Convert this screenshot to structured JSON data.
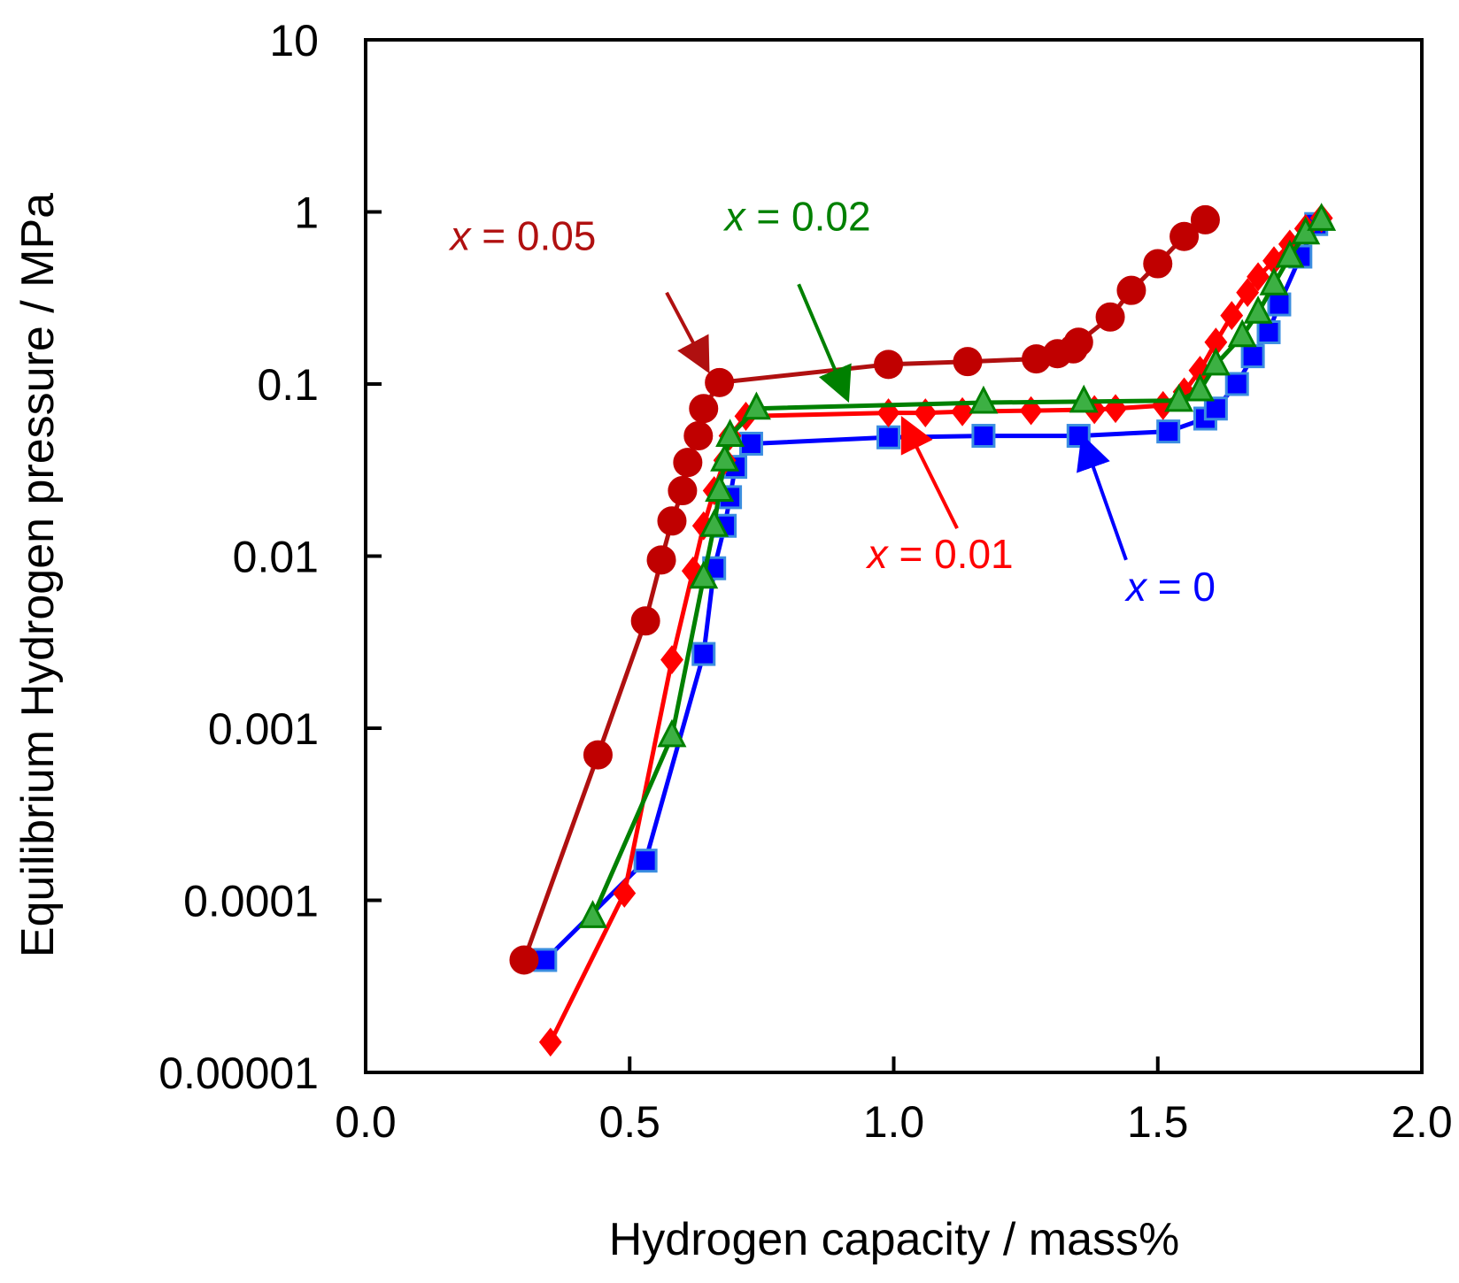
{
  "chart_data": {
    "type": "line",
    "title": "",
    "xlabel": "Hydrogen capacity / mass%",
    "ylabel": "Equilibrium Hydrogen pressure / MPa",
    "xlim": [
      0.0,
      2.0
    ],
    "ylim": [
      1e-05,
      10
    ],
    "yscale": "log",
    "x_ticks": [
      0.0,
      0.5,
      1.0,
      1.5,
      2.0
    ],
    "x_tick_labels": [
      "0.0",
      "0.5",
      "1.0",
      "1.5",
      "2.0"
    ],
    "y_ticks": [
      1e-05,
      0.0001,
      0.001,
      0.01,
      0.1,
      1,
      10
    ],
    "y_tick_labels": [
      "0.00001",
      "0.0001",
      "0.001",
      "0.01",
      "0.1",
      "1",
      "10"
    ],
    "grid": false,
    "series": [
      {
        "name": "x = 0",
        "label_var": "x",
        "label_rest": " = 0",
        "color": "#0000ff",
        "marker": "square",
        "marker_fill": "#0000ff",
        "marker_edge": "#3b8ee0",
        "x": [
          0.34,
          0.53,
          0.64,
          0.66,
          0.68,
          0.69,
          0.7,
          0.73,
          0.99,
          1.17,
          1.35,
          1.52,
          1.59,
          1.61,
          1.65,
          1.68,
          1.71,
          1.73,
          1.77,
          1.8
        ],
        "y": [
          4.5e-05,
          0.00017,
          0.0027,
          0.0085,
          0.015,
          0.022,
          0.033,
          0.045,
          0.049,
          0.05,
          0.05,
          0.053,
          0.063,
          0.072,
          0.1,
          0.145,
          0.2,
          0.29,
          0.55,
          0.85
        ]
      },
      {
        "name": "x = 0.01",
        "label_var": "x",
        "label_rest": " = 0.01",
        "color": "#ff0000",
        "marker": "diamond",
        "marker_fill": "#ff0000",
        "marker_edge": "#ff0000",
        "x": [
          0.35,
          0.49,
          0.58,
          0.62,
          0.64,
          0.66,
          0.68,
          0.69,
          0.72,
          0.99,
          1.06,
          1.13,
          1.26,
          1.38,
          1.42,
          1.51,
          1.55,
          1.58,
          1.61,
          1.64,
          1.67,
          1.69,
          1.72,
          1.75,
          1.78,
          1.81
        ],
        "y": [
          1.5e-05,
          0.00011,
          0.0025,
          0.0082,
          0.015,
          0.024,
          0.036,
          0.05,
          0.065,
          0.068,
          0.068,
          0.069,
          0.07,
          0.071,
          0.072,
          0.075,
          0.09,
          0.12,
          0.175,
          0.25,
          0.34,
          0.42,
          0.52,
          0.65,
          0.8,
          0.92
        ]
      },
      {
        "name": "x = 0.02",
        "label_var": "x",
        "label_rest": " = 0.02",
        "color": "#008000",
        "marker": "triangle",
        "marker_fill": "#3cb043",
        "marker_edge": "#008000",
        "x": [
          0.43,
          0.58,
          0.64,
          0.66,
          0.67,
          0.68,
          0.69,
          0.74,
          1.17,
          1.36,
          1.54,
          1.58,
          1.61,
          1.66,
          1.69,
          1.72,
          1.75,
          1.78,
          1.81
        ],
        "y": [
          8e-05,
          0.0009,
          0.0075,
          0.015,
          0.024,
          0.036,
          0.05,
          0.072,
          0.078,
          0.079,
          0.08,
          0.092,
          0.13,
          0.19,
          0.26,
          0.38,
          0.55,
          0.75,
          0.9
        ]
      },
      {
        "name": "x = 0.05",
        "label_var": "x",
        "label_rest": " = 0.05",
        "color": "#b01010",
        "marker": "circle",
        "marker_fill": "#c00000",
        "marker_edge": "#c00000",
        "x": [
          0.3,
          0.44,
          0.53,
          0.56,
          0.58,
          0.6,
          0.61,
          0.63,
          0.64,
          0.67,
          0.99,
          1.14,
          1.27,
          1.31,
          1.34,
          1.35,
          1.41,
          1.45,
          1.5,
          1.55,
          1.59
        ],
        "y": [
          4.5e-05,
          0.0007,
          0.0042,
          0.0095,
          0.016,
          0.024,
          0.035,
          0.05,
          0.072,
          0.102,
          0.13,
          0.135,
          0.14,
          0.15,
          0.16,
          0.175,
          0.245,
          0.35,
          0.5,
          0.72,
          0.9
        ]
      }
    ],
    "annotations": [
      {
        "series": "x = 0.05",
        "text_var": "x",
        "text_rest": " = 0.05",
        "color": "#b01010",
        "text_at": [
          0.16,
          0.6
        ],
        "arrow_from": [
          0.57,
          0.34
        ],
        "arrow_to": [
          0.645,
          0.125
        ]
      },
      {
        "series": "x = 0.02",
        "text_var": "x",
        "text_rest": " = 0.02",
        "color": "#008000",
        "text_at": [
          0.68,
          0.78
        ],
        "arrow_from": [
          0.82,
          0.38
        ],
        "arrow_to": [
          0.91,
          0.085
        ]
      },
      {
        "series": "x = 0.01",
        "text_var": "x",
        "text_rest": " = 0.01",
        "color": "#ff0000",
        "text_at": [
          0.95,
          0.0085
        ],
        "arrow_from": [
          1.12,
          0.0145
        ],
        "arrow_to": [
          1.02,
          0.06
        ]
      },
      {
        "series": "x = 0",
        "text_var": "x",
        "text_rest": " = 0",
        "color": "#0000ff",
        "text_at": [
          1.44,
          0.0055
        ],
        "arrow_from": [
          1.44,
          0.0095
        ],
        "arrow_to": [
          1.36,
          0.047
        ]
      }
    ]
  }
}
